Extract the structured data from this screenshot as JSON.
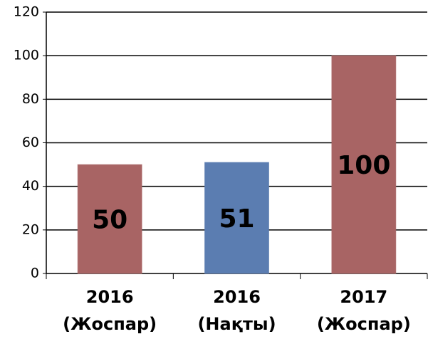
{
  "chart_data": {
    "type": "bar",
    "categories": [
      "2016 (Жоспар)",
      "2016 (Нақты)",
      "2017 (Жоспар)"
    ],
    "values": [
      50,
      51,
      100
    ],
    "colors": [
      "#a86464",
      "#5b7db1",
      "#a86464"
    ],
    "ylim": [
      0,
      120
    ],
    "yticks": [
      0,
      20,
      40,
      60,
      80,
      100,
      120
    ],
    "grid": true
  }
}
